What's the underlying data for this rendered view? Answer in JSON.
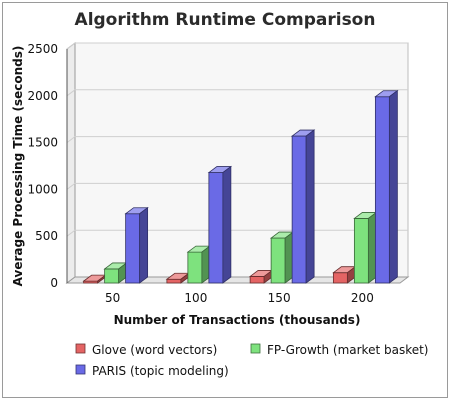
{
  "chart_data": {
    "type": "bar",
    "title": "Algorithm Runtime Comparison",
    "xlabel": "Number of Transactions (thousands)",
    "ylabel": "Average Processing Time (seconds)",
    "categories": [
      "50",
      "100",
      "150",
      "200"
    ],
    "series": [
      {
        "name": "Glove (word vectors)",
        "values": [
          20,
          40,
          70,
          110
        ],
        "color": "#e46464"
      },
      {
        "name": "FP-Growth (market basket)",
        "values": [
          150,
          330,
          480,
          690
        ],
        "color": "#7ee27e"
      },
      {
        "name": "PARIS (topic modeling)",
        "values": [
          740,
          1180,
          1570,
          1990
        ],
        "color": "#6a6ae6"
      }
    ],
    "ylim": [
      0,
      2500
    ],
    "yticks": [
      0,
      500,
      1000,
      1500,
      2000,
      2500
    ],
    "grid": true,
    "legend_position": "bottom",
    "style": "3d-bar"
  }
}
